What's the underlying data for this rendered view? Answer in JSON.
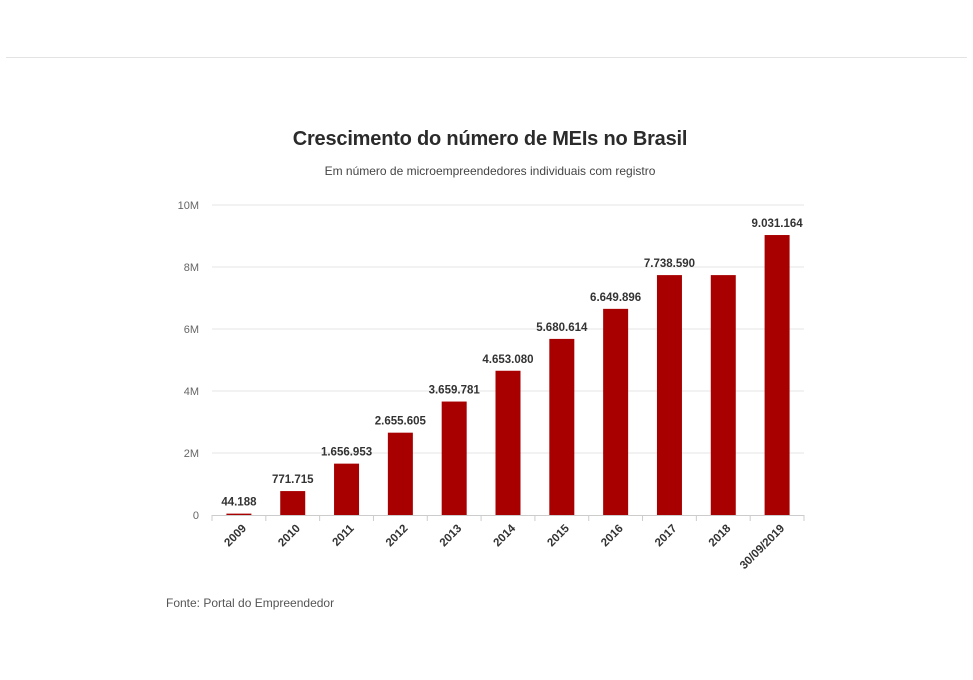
{
  "chart_data": {
    "type": "bar",
    "title": "Crescimento do número de MEIs no Brasil",
    "subtitle": "Em número de microempreendedores individuais com registro",
    "categories": [
      "2009",
      "2010",
      "2011",
      "2012",
      "2013",
      "2014",
      "2015",
      "2016",
      "2017",
      "2018",
      "30/09/2019"
    ],
    "values": [
      44188,
      771715,
      1656953,
      2655605,
      3659781,
      4653080,
      5680614,
      6649896,
      7738590,
      7738590,
      9031164
    ],
    "data_labels": [
      "44.188",
      "771.715",
      "1.656.953",
      "2.655.605",
      "3.659.781",
      "4.653.080",
      "5.680.614",
      "6.649.896",
      "7.738.590",
      "",
      "9.031.164"
    ],
    "y_ticks": [
      0,
      2000000,
      4000000,
      6000000,
      8000000,
      10000000
    ],
    "y_tick_labels": [
      "0",
      "2M",
      "4M",
      "6M",
      "8M",
      "10M"
    ],
    "ylim": [
      0,
      10000000
    ],
    "xlabel": "",
    "ylabel": "",
    "bar_color": "#a80000",
    "grid": true,
    "source": "Fonte: Portal do Empreendedor"
  }
}
